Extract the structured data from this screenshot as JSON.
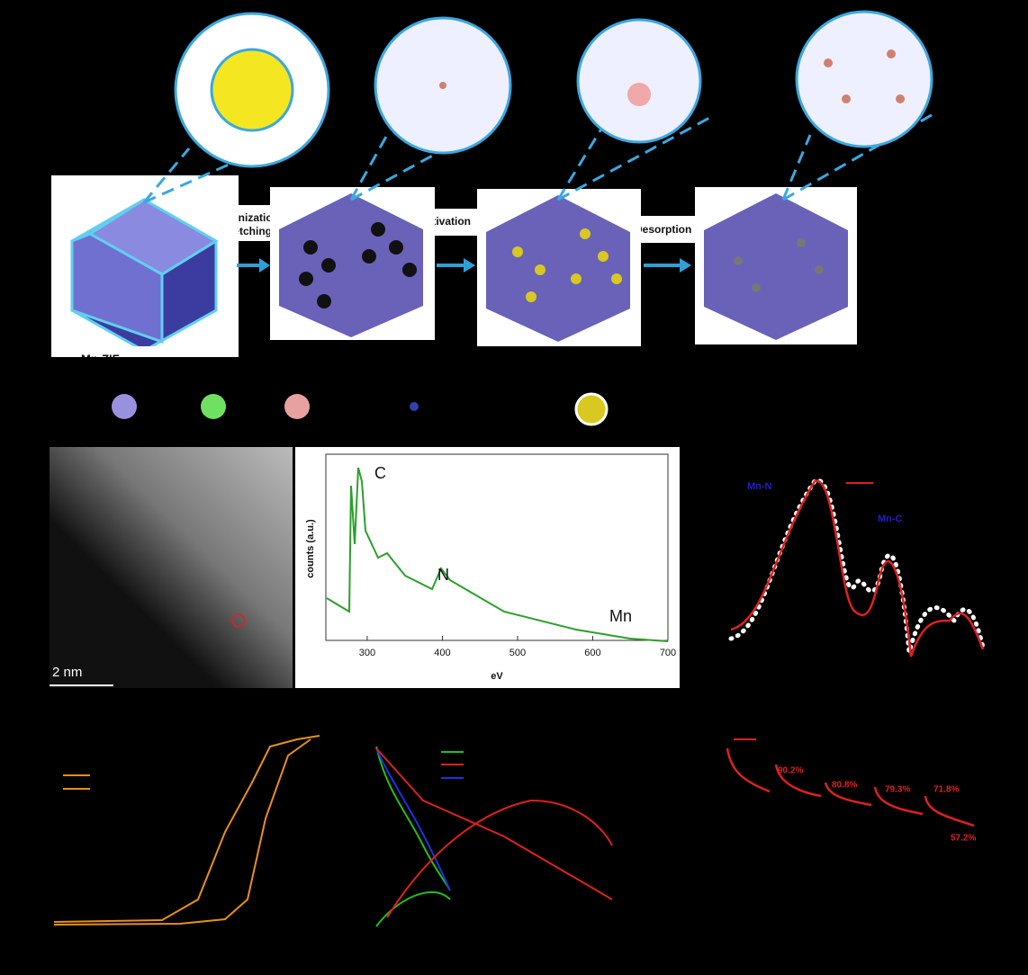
{
  "scheme": {
    "step_1a": "Carbonization",
    "step_1b": "Acid etching",
    "step_2": "Activation",
    "step_3": "Desorption",
    "precursor": "Mn-ZIF"
  },
  "stem": {
    "scale_bar": "2 nm"
  },
  "eels": {
    "ylabel": "counts (a.u.)",
    "xlabel": "eV",
    "peaks": [
      "C",
      "N",
      "Mn"
    ],
    "xlim": [
      245,
      700
    ],
    "xticks": [
      300,
      400,
      500,
      600,
      700
    ]
  },
  "exafs": {
    "labels": [
      "Mn-N",
      "Mn-C"
    ]
  },
  "stability": {
    "retention": [
      "90.2%",
      "80.8%",
      "79.3%",
      "71.8%",
      "57.2%"
    ]
  }
}
